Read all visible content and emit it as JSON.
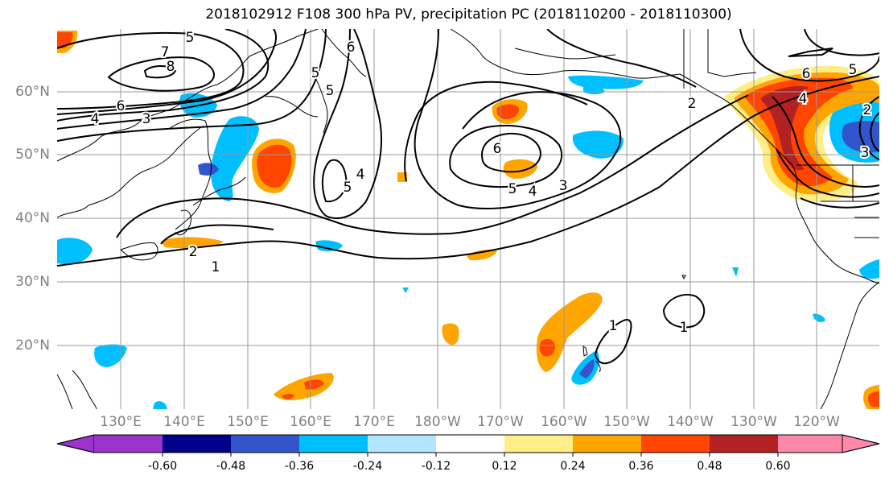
{
  "title": "2018102912 F108 300 hPa PV, precipitation PC (2018110200 - 2018110300)",
  "lat_labels": [
    "60°N",
    "50°N",
    "40°N",
    "30°N",
    "20°N"
  ],
  "lon_labels": [
    "130°E",
    "140°E",
    "150°E",
    "160°E",
    "170°E",
    "180°W",
    "170°W",
    "160°W",
    "150°W",
    "140°W",
    "130°W",
    "120°W"
  ],
  "contour_labels": [
    "8",
    "7",
    "6",
    "5",
    "4",
    "3",
    "2",
    "1",
    "5",
    "6",
    "5",
    "4",
    "5",
    "6",
    "4",
    "5",
    "3",
    "6",
    "5",
    "4",
    "3",
    "2",
    "1",
    "2",
    "1",
    "1",
    "2",
    "5",
    "6",
    "4",
    "2"
  ],
  "colorbar": {
    "ticks": [
      "-0.60",
      "-0.48",
      "-0.36",
      "-0.24",
      "-0.12",
      "0.12",
      "0.24",
      "0.36",
      "0.48",
      "0.60"
    ],
    "colors": [
      "#9933cc",
      "#00008b",
      "#3355cc",
      "#00bfff",
      "#b3e5ff",
      "#ffffff",
      "#ffee88",
      "#ffa500",
      "#ff4500",
      "#b22222",
      "#ff88aa"
    ]
  }
}
